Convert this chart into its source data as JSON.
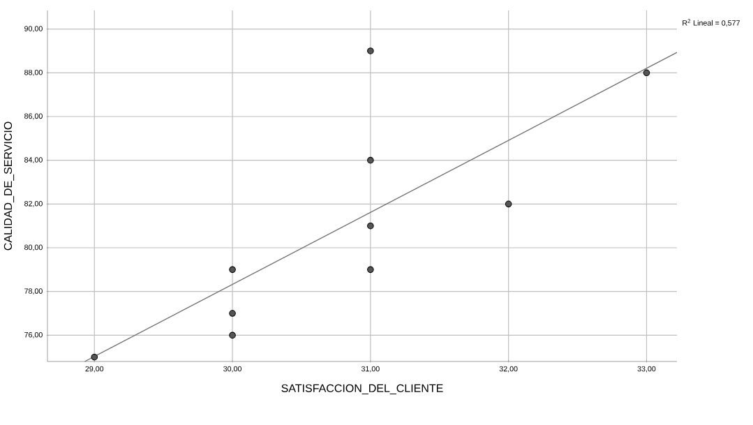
{
  "chart_data": {
    "type": "scatter",
    "xlabel": "SATISFACCION_DEL_CLIENTE",
    "ylabel": "CALIDAD_DE_SERVICIO",
    "annotations": [
      "R$^{2}$ Lineal = 0,577"
    ],
    "xlim": [
      28.66,
      33.22
    ],
    "ylim": [
      74.8,
      90.85
    ],
    "xticks": [
      {
        "value": 29,
        "label": "29,00"
      },
      {
        "value": 30,
        "label": "30,00"
      },
      {
        "value": 31,
        "label": "31,00"
      },
      {
        "value": 32,
        "label": "32,00"
      },
      {
        "value": 33,
        "label": "33,00"
      }
    ],
    "yticks": [
      {
        "value": 76,
        "label": "76,00"
      },
      {
        "value": 78,
        "label": "78,00"
      },
      {
        "value": 80,
        "label": "80,00"
      },
      {
        "value": 82,
        "label": "82,00"
      },
      {
        "value": 84,
        "label": "84,00"
      },
      {
        "value": 86,
        "label": "86,00"
      },
      {
        "value": 88,
        "label": "88,00"
      },
      {
        "value": 90,
        "label": "90,00"
      }
    ],
    "grid": true,
    "marker": "circle",
    "series": [
      {
        "color": "#555555",
        "x": [
          29,
          30,
          30,
          30,
          31,
          31,
          31,
          31,
          32,
          33
        ],
        "values": [
          75,
          79,
          77,
          76,
          89,
          84,
          81,
          79,
          82,
          88
        ]
      },
      {
        "type": "line",
        "color": "#707070",
        "marker": "none",
        "x": [
          28.93,
          33.22
        ],
        "values": [
          74.8,
          88.93
        ]
      }
    ]
  }
}
